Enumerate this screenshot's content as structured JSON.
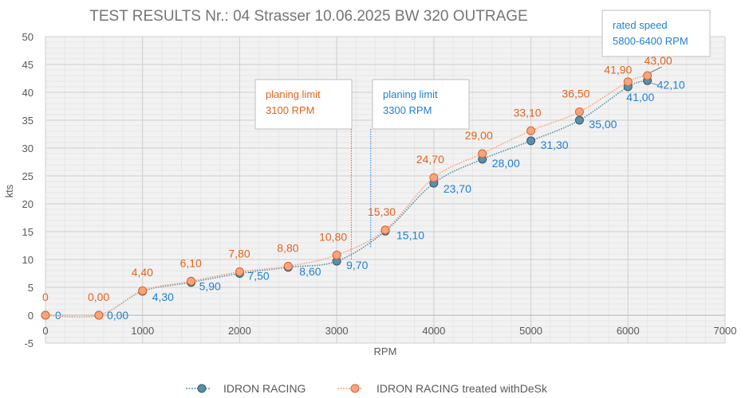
{
  "chart_data": {
    "type": "line",
    "title": "TEST RESULTS Nr.: 04 Strasser  10.06.2025 BW 320 OUTRAGE",
    "xlabel": "RPM",
    "ylabel": "kts",
    "xlim": [
      0,
      7000
    ],
    "ylim": [
      -5,
      50
    ],
    "xticks": [
      "0",
      "1000",
      "2000",
      "3000",
      "4000",
      "5000",
      "6000",
      "7000"
    ],
    "yticks": [
      "-5",
      "0",
      "5",
      "10",
      "15",
      "20",
      "25",
      "30",
      "35",
      "40",
      "45",
      "50"
    ],
    "grid": true,
    "legend_position": "bottom",
    "series": [
      {
        "name": "IDRON RACING",
        "color": "#5B8FA8",
        "label_color": "#1F7FD4",
        "x": [
          0,
          550,
          1000,
          1500,
          2000,
          2500,
          3000,
          3500,
          4000,
          4500,
          5000,
          5500,
          6000,
          6200
        ],
        "y": [
          0,
          0,
          4.3,
          5.9,
          7.5,
          8.6,
          9.7,
          15.1,
          23.7,
          28.0,
          31.3,
          35.0,
          41.0,
          42.1
        ],
        "labels": [
          "0",
          "0,00",
          "4,30",
          "5,90",
          "7,50",
          "8,60",
          "9,70",
          "15,10",
          "23,70",
          "28,00",
          "31,30",
          "35,00",
          "41,00",
          "42,10"
        ]
      },
      {
        "name": "IDRON RACING treated withDeSk",
        "color": "#F4A582",
        "label_color": "#E0641E",
        "x": [
          0,
          550,
          1000,
          1500,
          2000,
          2500,
          3000,
          3500,
          4000,
          4500,
          5000,
          5500,
          6000,
          6200
        ],
        "y": [
          0,
          0,
          4.4,
          6.1,
          7.8,
          8.8,
          10.8,
          15.3,
          24.7,
          29.0,
          33.1,
          36.5,
          41.9,
          43.0
        ],
        "labels": [
          "0",
          "0,00",
          "4,40",
          "6,10",
          "7,80",
          "8,80",
          "10,80",
          "15,30",
          "24,70",
          "29,00",
          "33,10",
          "36,50",
          "41,90",
          "43,00"
        ]
      }
    ],
    "annotations": [
      {
        "line1": "planing limit",
        "line2": "3100 RPM",
        "color": "#E0641E",
        "rpm": 3150
      },
      {
        "line1": "planing limit",
        "line2": "3300 RPM",
        "color": "#1F7FD4",
        "rpm": 3350
      },
      {
        "line1": "rated speed",
        "line2": "5800-6400 RPM",
        "color": "#1F7FD4"
      }
    ]
  }
}
